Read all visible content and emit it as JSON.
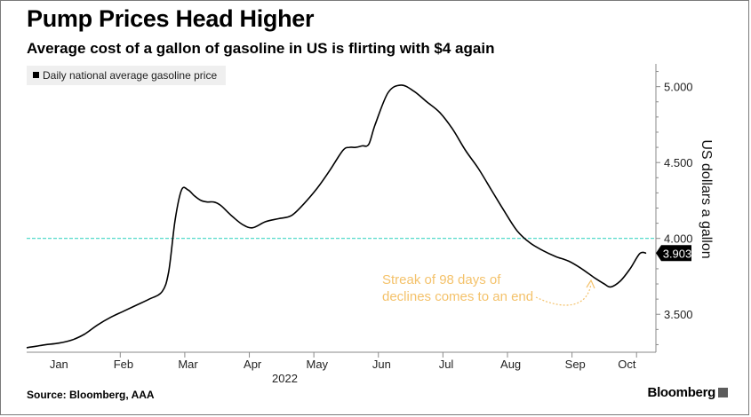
{
  "header": {
    "title": "Pump Prices Head Higher",
    "subtitle": "Average cost of a gallon of gasoline in US is flirting with $4 again"
  },
  "footer": {
    "source": "Source: Bloomberg, AAA",
    "brand": "Bloomberg"
  },
  "colors": {
    "line": "#000000",
    "reference_line": "#3fd6c4",
    "annotation": "#f4c26b",
    "axis": "#8a8a8a",
    "label_badge": "#000000",
    "legend_bg": "#efefef"
  },
  "chart_data": {
    "type": "line",
    "title": "Pump Prices Head Higher",
    "subtitle": "Average cost of a gallon of gasoline in US is flirting with $4 again",
    "xlabel": "2022",
    "ylabel": "US dollars a gallon",
    "ylim": [
      3.25,
      5.15
    ],
    "xlim": [
      0,
      9.35
    ],
    "y_ticks": [
      3.5,
      4.0,
      4.5,
      5.0
    ],
    "y_tick_labels": [
      "3.500",
      "4.000",
      "4.500",
      "5.000"
    ],
    "x_ticks": [
      0.5,
      1.5,
      2.5,
      3.5,
      4.5,
      5.5,
      6.5,
      7.5,
      8.5,
      9.35
    ],
    "x_tick_labels": [
      "Jan",
      "Feb",
      "Mar",
      "Apr",
      "May",
      "Jun",
      "Jul",
      "Aug",
      "Sep",
      "Oct"
    ],
    "x_tick_positions": [
      0.95,
      1.95,
      2.95,
      3.95,
      4.95,
      5.95,
      6.95,
      7.95,
      8.95,
      9.75
    ],
    "year_label": "2022",
    "grid": false,
    "legend": {
      "position": "top-left",
      "entries": [
        "Daily national average gasoline price"
      ]
    },
    "reference_line": {
      "value": 4.0
    },
    "last_value_label": "3.903",
    "annotation": {
      "text_line1": "Streak of 98 days of",
      "text_line2": "declines comes to an end"
    },
    "series": [
      {
        "name": "Daily national average gasoline price",
        "x": [
          0,
          0.15,
          0.3,
          0.5,
          0.7,
          0.9,
          1.1,
          1.3,
          1.5,
          1.7,
          1.9,
          2.1,
          2.2,
          2.3,
          2.4,
          2.5,
          2.6,
          2.7,
          2.8,
          2.9,
          3.0,
          3.1,
          3.2,
          3.35,
          3.5,
          3.7,
          3.9,
          4.1,
          4.3,
          4.5,
          4.7,
          4.9,
          5.0,
          5.1,
          5.2,
          5.3,
          5.4,
          5.6,
          5.8,
          6.0,
          6.2,
          6.4,
          6.6,
          6.8,
          7.0,
          7.2,
          7.4,
          7.6,
          7.8,
          8.0,
          8.2,
          8.4,
          8.6,
          8.8,
          8.95,
          9.05,
          9.2,
          9.35,
          9.5,
          9.6
        ],
        "values": [
          3.28,
          3.29,
          3.3,
          3.31,
          3.33,
          3.37,
          3.43,
          3.48,
          3.52,
          3.56,
          3.6,
          3.65,
          3.78,
          4.12,
          4.32,
          4.32,
          4.28,
          4.25,
          4.24,
          4.24,
          4.22,
          4.18,
          4.14,
          4.09,
          4.07,
          4.11,
          4.13,
          4.15,
          4.23,
          4.33,
          4.45,
          4.58,
          4.6,
          4.6,
          4.61,
          4.62,
          4.75,
          4.96,
          5.01,
          4.97,
          4.9,
          4.83,
          4.72,
          4.58,
          4.46,
          4.32,
          4.18,
          4.05,
          3.97,
          3.92,
          3.88,
          3.85,
          3.8,
          3.74,
          3.7,
          3.68,
          3.72,
          3.8,
          3.9,
          3.903
        ]
      }
    ]
  }
}
